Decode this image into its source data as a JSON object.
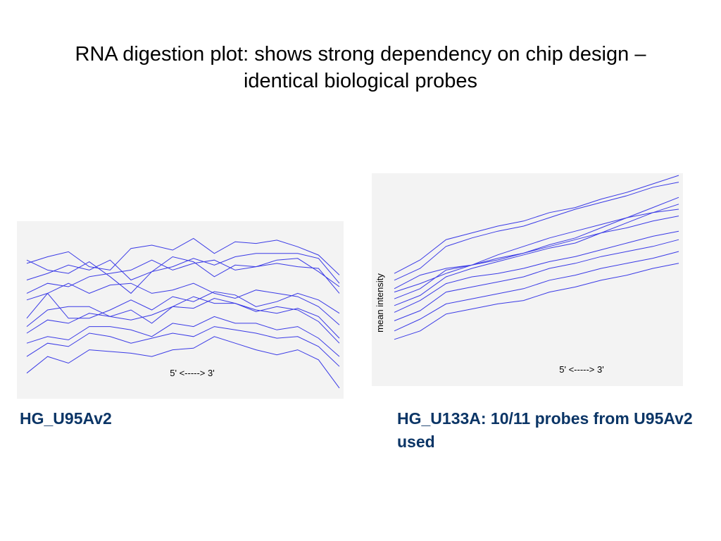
{
  "title": "RNA digestion plot: shows strong dependency on chip design – identical biological probes",
  "captions": {
    "left": "HG_U95Av2",
    "right": "HG_U133A: 10/11 probes from U95Av2 used"
  },
  "colors": {
    "line": "#3a3ae6",
    "background": "#f3f3f3",
    "caption": "#0b3566"
  },
  "chart_data": [
    {
      "type": "line",
      "title": "",
      "xlabel": "5' <-----> 3'",
      "ylabel": "",
      "x": [
        1,
        2,
        3,
        4,
        5,
        6,
        7,
        8,
        9,
        10,
        11,
        12,
        13,
        14,
        15,
        16
      ],
      "ylim": [
        0,
        100
      ],
      "series": [
        {
          "values": [
            78,
            82,
            85,
            76,
            74,
            87,
            89,
            86,
            93,
            84,
            91,
            90,
            92,
            88,
            83,
            71
          ]
        },
        {
          "values": [
            80,
            74,
            72,
            79,
            70,
            60,
            73,
            82,
            79,
            70,
            77,
            76,
            80,
            81,
            73,
            64
          ]
        },
        {
          "values": [
            68,
            72,
            77,
            74,
            80,
            68,
            73,
            76,
            81,
            77,
            82,
            84,
            84,
            84,
            81,
            66
          ]
        },
        {
          "values": [
            60,
            66,
            64,
            70,
            72,
            74,
            80,
            74,
            78,
            80,
            74,
            76,
            78,
            76,
            75,
            60
          ]
        },
        {
          "values": [
            56,
            60,
            66,
            60,
            65,
            66,
            60,
            62,
            66,
            60,
            57,
            62,
            60,
            58,
            52,
            41
          ]
        },
        {
          "values": [
            45,
            60,
            45,
            45,
            50,
            56,
            50,
            58,
            55,
            61,
            59,
            52,
            55,
            60,
            56,
            48
          ]
        },
        {
          "values": [
            40,
            50,
            52,
            52,
            46,
            50,
            42,
            52,
            58,
            54,
            54,
            50,
            48,
            51,
            46,
            33
          ]
        },
        {
          "values": [
            36,
            44,
            42,
            48,
            46,
            44,
            47,
            52,
            51,
            57,
            54,
            49,
            52,
            50,
            43,
            30
          ]
        },
        {
          "values": [
            30,
            34,
            32,
            40,
            40,
            38,
            34,
            42,
            40,
            46,
            42,
            42,
            38,
            40,
            33,
            22
          ]
        },
        {
          "values": [
            22,
            30,
            28,
            36,
            34,
            30,
            33,
            36,
            34,
            40,
            38,
            36,
            33,
            34,
            28,
            16
          ]
        },
        {
          "values": [
            12,
            22,
            18,
            26,
            25,
            24,
            22,
            26,
            27,
            34,
            30,
            26,
            23,
            26,
            20,
            3
          ]
        }
      ]
    },
    {
      "type": "line",
      "title": "",
      "xlabel": "5' <-----> 3'",
      "ylabel": "mean intensity",
      "x": [
        1,
        2,
        3,
        4,
        5,
        6,
        7,
        8,
        9,
        10,
        11,
        12
      ],
      "ylim": [
        0,
        100
      ],
      "series": [
        {
          "values": [
            42,
            50,
            62,
            66,
            70,
            73,
            78,
            81,
            86,
            90,
            95,
            100
          ]
        },
        {
          "values": [
            38,
            45,
            58,
            63,
            67,
            70,
            75,
            80,
            84,
            88,
            93,
            96
          ]
        },
        {
          "values": [
            33,
            41,
            45,
            47,
            50,
            54,
            58,
            62,
            66,
            69,
            73,
            76
          ]
        },
        {
          "values": [
            31,
            36,
            42,
            47,
            53,
            58,
            63,
            67,
            71,
            75,
            78,
            80
          ]
        },
        {
          "values": [
            27,
            33,
            44,
            47,
            51,
            54,
            59,
            63,
            69,
            75,
            81,
            87
          ]
        },
        {
          "values": [
            23,
            29,
            40,
            45,
            49,
            53,
            57,
            60,
            66,
            72,
            78,
            83
          ]
        },
        {
          "values": [
            19,
            26,
            36,
            40,
            42,
            45,
            49,
            52,
            56,
            60,
            64,
            67
          ]
        },
        {
          "values": [
            14,
            20,
            31,
            34,
            37,
            40,
            45,
            48,
            52,
            55,
            58,
            62
          ]
        },
        {
          "values": [
            8,
            15,
            24,
            27,
            30,
            33,
            38,
            41,
            45,
            48,
            51,
            55
          ]
        },
        {
          "values": [
            3,
            8,
            18,
            21,
            24,
            26,
            31,
            34,
            38,
            41,
            45,
            48
          ]
        }
      ]
    }
  ]
}
